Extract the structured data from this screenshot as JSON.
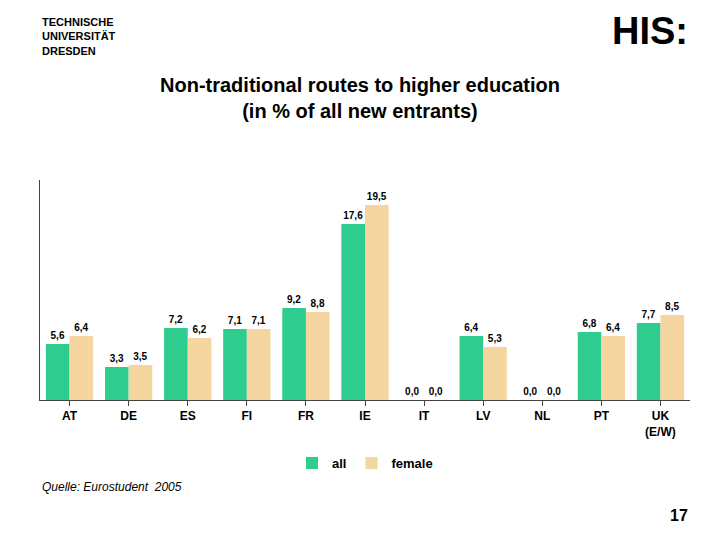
{
  "chart_data": {
    "type": "bar",
    "title": "Non-traditional routes to higher education",
    "subtitle": "(in % of all new entrants)",
    "categories": [
      "AT",
      "DE",
      "ES",
      "FI",
      "FR",
      "IE",
      "IT",
      "LV",
      "NL",
      "PT",
      "UK\n(E/W)"
    ],
    "series": [
      {
        "name": "all",
        "color": "#2ECC8E",
        "values": [
          5.6,
          3.3,
          7.2,
          7.1,
          9.2,
          17.6,
          0.0,
          6.4,
          0.0,
          6.8,
          7.7
        ],
        "value_labels": [
          "5,6",
          "3,3",
          "7,2",
          "7,1",
          "9,2",
          "17,6",
          "0,0",
          "6,4",
          "0,0",
          "6,8",
          "7,7"
        ]
      },
      {
        "name": "female",
        "color": "#F5D5A0",
        "values": [
          6.4,
          3.5,
          6.2,
          7.1,
          8.8,
          19.5,
          0.0,
          5.3,
          0.0,
          6.4,
          8.5
        ],
        "value_labels": [
          "6,4",
          "3,5",
          "6,2",
          "7,1",
          "8,8",
          "19,5",
          "0,0",
          "5,3",
          "0,0",
          "6,4",
          "8,5"
        ]
      }
    ],
    "ylim": [
      0,
      22
    ],
    "grid": false,
    "legend": "bottom",
    "data_labels": true,
    "tick_labels": "x",
    "annotations": [
      "TECHNISCHE\nUNIVERSITÄT\nDRESDEN",
      "HIS:",
      "Quelle: Eurostudent  2005",
      "17"
    ]
  }
}
